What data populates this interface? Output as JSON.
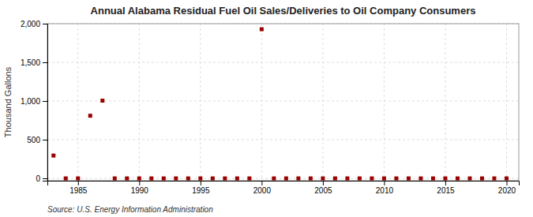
{
  "chart_data": {
    "type": "scatter",
    "title": "Annual Alabama Residual Fuel Oil Sales/Deliveries to Oil Company Consumers",
    "ylabel": "Thousand Gallons",
    "annotations": [
      "Source: U.S. Energy Information Administration"
    ],
    "color": "#990000",
    "marker": "square",
    "grid": true,
    "xlim": [
      1982.5,
      2021
    ],
    "ylim": [
      -30,
      2000
    ],
    "xticks": [
      1985,
      1990,
      1995,
      2000,
      2005,
      2010,
      2015,
      2020
    ],
    "yticks": [
      0,
      500,
      {
        "value": 1000,
        "label": "1,000"
      },
      {
        "value": 1500,
        "label": "1,500"
      },
      {
        "value": 2000,
        "label": "2,000"
      }
    ],
    "x": [
      1983,
      1984,
      1985,
      1986,
      1987,
      1988,
      1989,
      1990,
      1991,
      1992,
      1993,
      1994,
      1995,
      1996,
      1997,
      1998,
      1999,
      2000,
      2001,
      2002,
      2003,
      2004,
      2005,
      2006,
      2007,
      2008,
      2009,
      2010,
      2011,
      2012,
      2013,
      2014,
      2015,
      2016,
      2017,
      2018,
      2019,
      2020
    ],
    "values": [
      295,
      0,
      0,
      810,
      1005,
      0,
      0,
      0,
      0,
      0,
      0,
      0,
      0,
      0,
      0,
      0,
      0,
      1928,
      0,
      0,
      0,
      0,
      0,
      0,
      0,
      0,
      0,
      0,
      0,
      0,
      0,
      0,
      0,
      0,
      0,
      0,
      0,
      0
    ]
  }
}
